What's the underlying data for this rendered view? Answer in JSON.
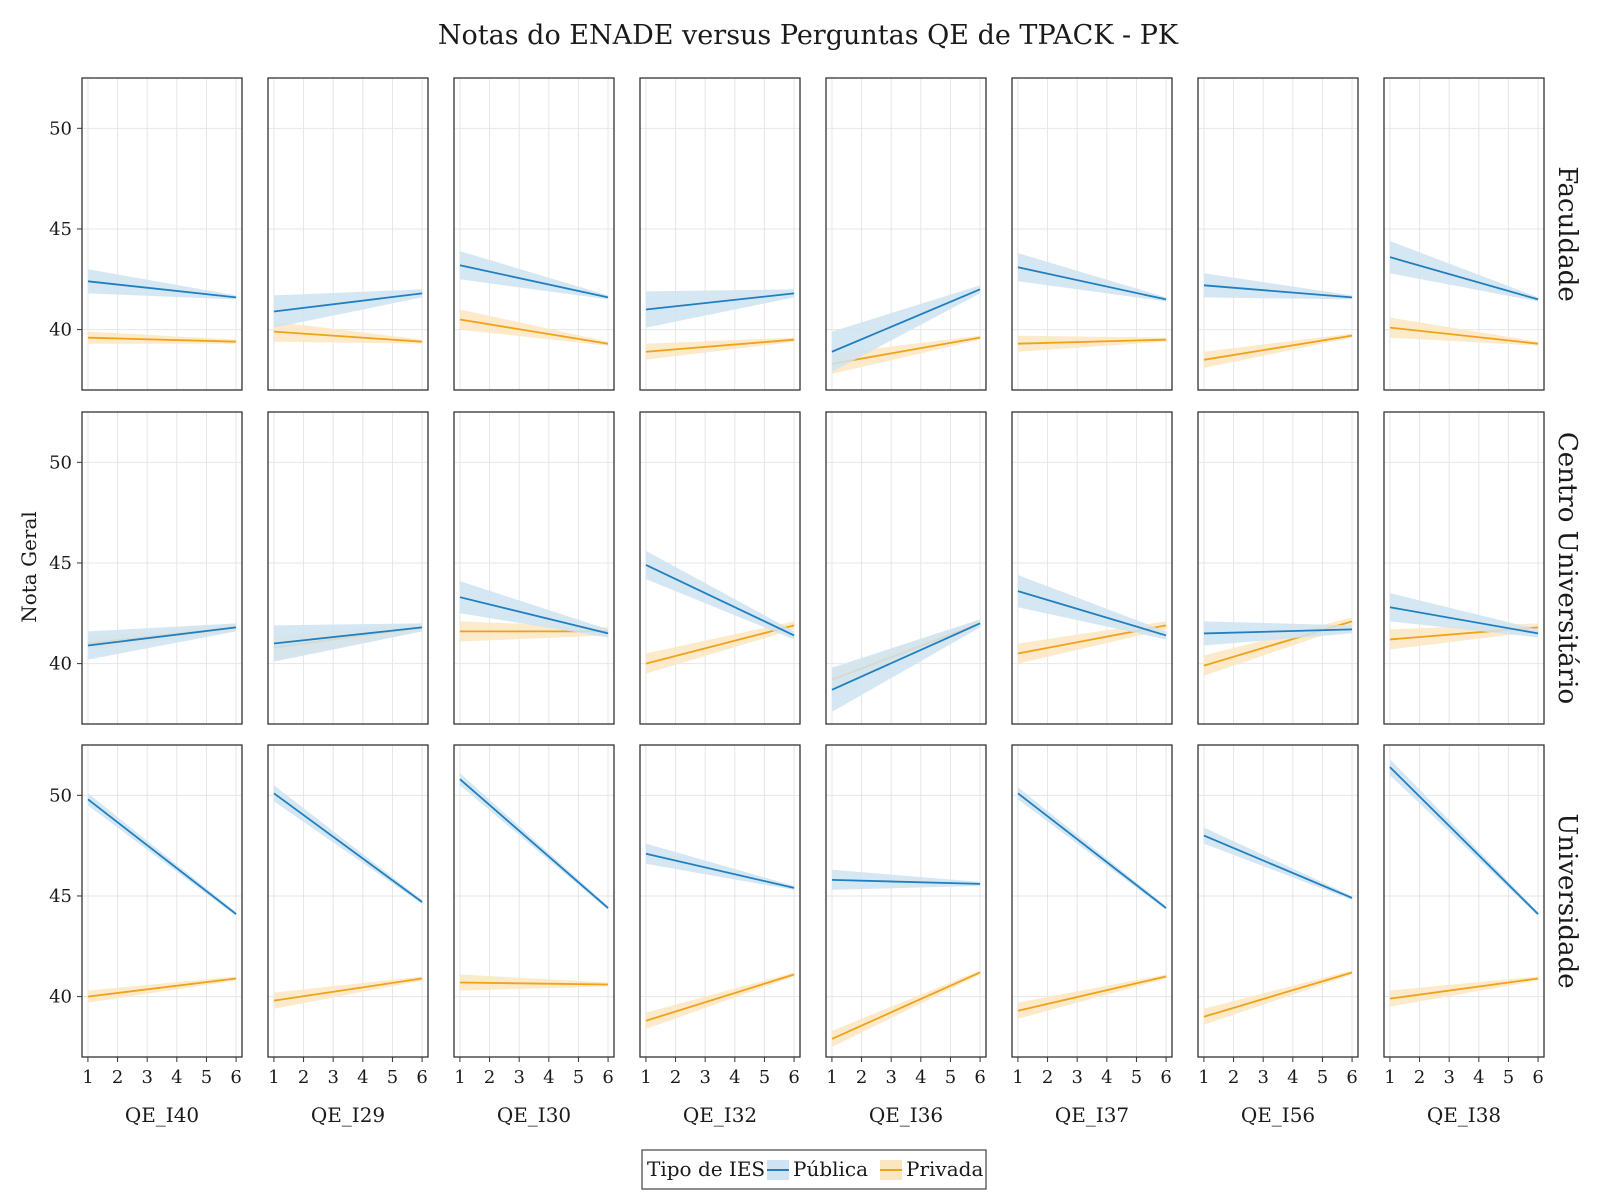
{
  "chart_data": {
    "type": "line",
    "title": "Notas do ENADE versus Perguntas QE de TPACK - PK",
    "ylabel": "Nota Geral",
    "ylim": [
      37,
      52.5
    ],
    "xlim": [
      0.8,
      6.2
    ],
    "yticks": [
      40,
      45,
      50
    ],
    "xticks": [
      1,
      2,
      3,
      4,
      5,
      6
    ],
    "grid": true,
    "legend": {
      "title": "Tipo de IES",
      "placement": "bottom-center",
      "entries": [
        {
          "name": "Pública",
          "color": "#1f7fbf",
          "band": "#cfe3f2"
        },
        {
          "name": "Privada",
          "color": "#f0a21b",
          "band": "#fbe6c2"
        }
      ]
    },
    "columns": [
      "QE_I40",
      "QE_I29",
      "QE_I30",
      "QE_I32",
      "QE_I36",
      "QE_I37",
      "QE_I56",
      "QE_I38"
    ],
    "rows": [
      "Faculdade",
      "Centro Universitário",
      "Universidade"
    ],
    "panels": [
      [
        {
          "publica": [
            [
              1,
              42.4,
              0.6
            ],
            [
              6,
              41.6,
              0.1
            ]
          ],
          "privada": [
            [
              1,
              39.6,
              0.3
            ],
            [
              6,
              39.4,
              0.1
            ]
          ]
        },
        {
          "publica": [
            [
              1,
              40.9,
              0.8
            ],
            [
              6,
              41.8,
              0.2
            ]
          ],
          "privada": [
            [
              1,
              39.9,
              0.5
            ],
            [
              6,
              39.4,
              0.1
            ]
          ]
        },
        {
          "publica": [
            [
              1,
              43.2,
              0.7
            ],
            [
              6,
              41.6,
              0.1
            ]
          ],
          "privada": [
            [
              1,
              40.5,
              0.5
            ],
            [
              6,
              39.3,
              0.1
            ]
          ]
        },
        {
          "publica": [
            [
              1,
              41.0,
              0.9
            ],
            [
              6,
              41.8,
              0.2
            ]
          ],
          "privada": [
            [
              1,
              38.9,
              0.4
            ],
            [
              6,
              39.5,
              0.1
            ]
          ]
        },
        {
          "publica": [
            [
              1,
              38.9,
              1.0
            ],
            [
              6,
              42.0,
              0.2
            ]
          ],
          "privada": [
            [
              1,
              38.3,
              0.5
            ],
            [
              6,
              39.6,
              0.1
            ]
          ]
        },
        {
          "publica": [
            [
              1,
              43.1,
              0.7
            ],
            [
              6,
              41.5,
              0.1
            ]
          ],
          "privada": [
            [
              1,
              39.3,
              0.4
            ],
            [
              6,
              39.5,
              0.1
            ]
          ]
        },
        {
          "publica": [
            [
              1,
              42.2,
              0.6
            ],
            [
              6,
              41.6,
              0.1
            ]
          ],
          "privada": [
            [
              1,
              38.5,
              0.4
            ],
            [
              6,
              39.7,
              0.1
            ]
          ]
        },
        {
          "publica": [
            [
              1,
              43.6,
              0.8
            ],
            [
              6,
              41.5,
              0.1
            ]
          ],
          "privada": [
            [
              1,
              40.1,
              0.5
            ],
            [
              6,
              39.3,
              0.1
            ]
          ]
        }
      ],
      [
        {
          "publica": [
            [
              1,
              40.9,
              0.7
            ],
            [
              6,
              41.8,
              0.2
            ]
          ],
          "privada": [
            [
              1,
              41.0,
              0.3
            ],
            [
              6,
              41.8,
              0.2
            ]
          ]
        },
        {
          "publica": [
            [
              1,
              41.0,
              0.9
            ],
            [
              6,
              41.8,
              0.2
            ]
          ],
          "privada": [
            [
              1,
              40.8,
              0.6
            ],
            [
              6,
              41.8,
              0.2
            ]
          ]
        },
        {
          "publica": [
            [
              1,
              43.3,
              0.8
            ],
            [
              6,
              41.5,
              0.2
            ]
          ],
          "privada": [
            [
              1,
              41.6,
              0.5
            ],
            [
              6,
              41.6,
              0.2
            ]
          ]
        },
        {
          "publica": [
            [
              1,
              44.9,
              0.7
            ],
            [
              6,
              41.4,
              0.2
            ]
          ],
          "privada": [
            [
              1,
              40.0,
              0.5
            ],
            [
              6,
              41.9,
              0.2
            ]
          ]
        },
        {
          "publica": [
            [
              1,
              38.7,
              1.1
            ],
            [
              6,
              42.0,
              0.2
            ]
          ],
          "privada": [
            [
              1,
              39.2,
              0.5
            ],
            [
              6,
              42.0,
              0.2
            ]
          ]
        },
        {
          "publica": [
            [
              1,
              43.6,
              0.8
            ],
            [
              6,
              41.4,
              0.2
            ]
          ],
          "privada": [
            [
              1,
              40.5,
              0.5
            ],
            [
              6,
              41.9,
              0.2
            ]
          ]
        },
        {
          "publica": [
            [
              1,
              41.5,
              0.6
            ],
            [
              6,
              41.7,
              0.2
            ]
          ],
          "privada": [
            [
              1,
              39.9,
              0.5
            ],
            [
              6,
              42.1,
              0.2
            ]
          ]
        },
        {
          "publica": [
            [
              1,
              42.8,
              0.7
            ],
            [
              6,
              41.5,
              0.2
            ]
          ],
          "privada": [
            [
              1,
              41.2,
              0.5
            ],
            [
              6,
              41.8,
              0.2
            ]
          ]
        }
      ],
      [
        {
          "publica": [
            [
              1,
              49.8,
              0.3
            ],
            [
              6,
              44.1,
              0.1
            ]
          ],
          "privada": [
            [
              1,
              40.0,
              0.3
            ],
            [
              6,
              40.9,
              0.1
            ]
          ]
        },
        {
          "publica": [
            [
              1,
              50.1,
              0.4
            ],
            [
              6,
              44.7,
              0.1
            ]
          ],
          "privada": [
            [
              1,
              39.8,
              0.4
            ],
            [
              6,
              40.9,
              0.1
            ]
          ]
        },
        {
          "publica": [
            [
              1,
              50.8,
              0.3
            ],
            [
              6,
              44.4,
              0.1
            ]
          ],
          "privada": [
            [
              1,
              40.7,
              0.4
            ],
            [
              6,
              40.6,
              0.1
            ]
          ]
        },
        {
          "publica": [
            [
              1,
              47.1,
              0.5
            ],
            [
              6,
              45.4,
              0.1
            ]
          ],
          "privada": [
            [
              1,
              38.8,
              0.4
            ],
            [
              6,
              41.1,
              0.1
            ]
          ]
        },
        {
          "publica": [
            [
              1,
              45.8,
              0.5
            ],
            [
              6,
              45.6,
              0.1
            ]
          ],
          "privada": [
            [
              1,
              37.9,
              0.4
            ],
            [
              6,
              41.2,
              0.1
            ]
          ]
        },
        {
          "publica": [
            [
              1,
              50.1,
              0.3
            ],
            [
              6,
              44.4,
              0.1
            ]
          ],
          "privada": [
            [
              1,
              39.3,
              0.4
            ],
            [
              6,
              41.0,
              0.1
            ]
          ]
        },
        {
          "publica": [
            [
              1,
              48.0,
              0.4
            ],
            [
              6,
              44.9,
              0.1
            ]
          ],
          "privada": [
            [
              1,
              39.0,
              0.4
            ],
            [
              6,
              41.2,
              0.1
            ]
          ]
        },
        {
          "publica": [
            [
              1,
              51.4,
              0.4
            ],
            [
              6,
              44.1,
              0.1
            ]
          ],
          "privada": [
            [
              1,
              39.9,
              0.4
            ],
            [
              6,
              40.9,
              0.1
            ]
          ]
        }
      ]
    ]
  }
}
